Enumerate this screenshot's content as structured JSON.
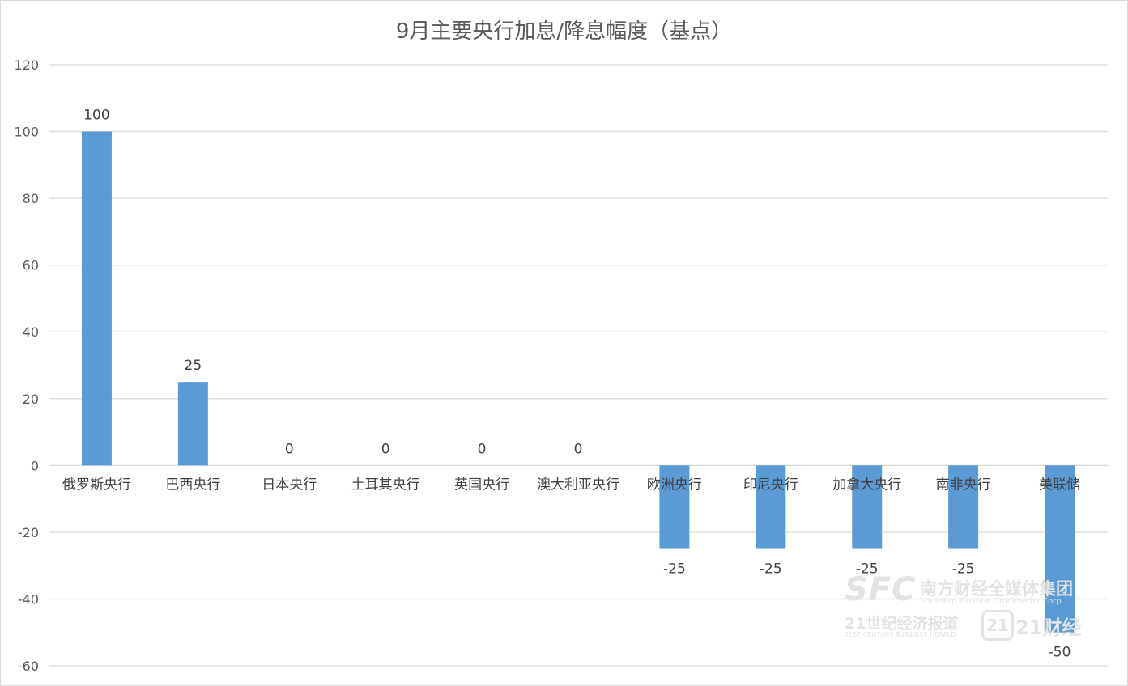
{
  "chart_data": {
    "type": "bar",
    "title": "9月主要央行加息/降息幅度（基点）",
    "categories": [
      "俄罗斯央行",
      "巴西央行",
      "日本央行",
      "土耳其央行",
      "英国央行",
      "澳大利亚央行",
      "欧洲央行",
      "印尼央行",
      "加拿大央行",
      "南非央行",
      "美联储"
    ],
    "values": [
      100,
      25,
      0,
      0,
      0,
      0,
      -25,
      -25,
      -25,
      -25,
      -50
    ],
    "ylim": [
      -60,
      120
    ],
    "yticks": [
      120,
      100,
      80,
      60,
      40,
      20,
      0,
      -20,
      -40,
      -60
    ],
    "grid": true,
    "bar_color": "#5b9bd5",
    "gridline_color": "#d9d9d9",
    "xlabel": "",
    "ylabel": ""
  },
  "watermark": {
    "logo_text": "SFC",
    "group_name": "南方财经全媒体集团",
    "group_name_en": "Southern Finance Omnimedia Corp",
    "newspaper": "21世纪经济报道",
    "newspaper_en": "21ST CENTURY BUSINESS HERALD",
    "badge": "21",
    "brand": "21财经"
  }
}
